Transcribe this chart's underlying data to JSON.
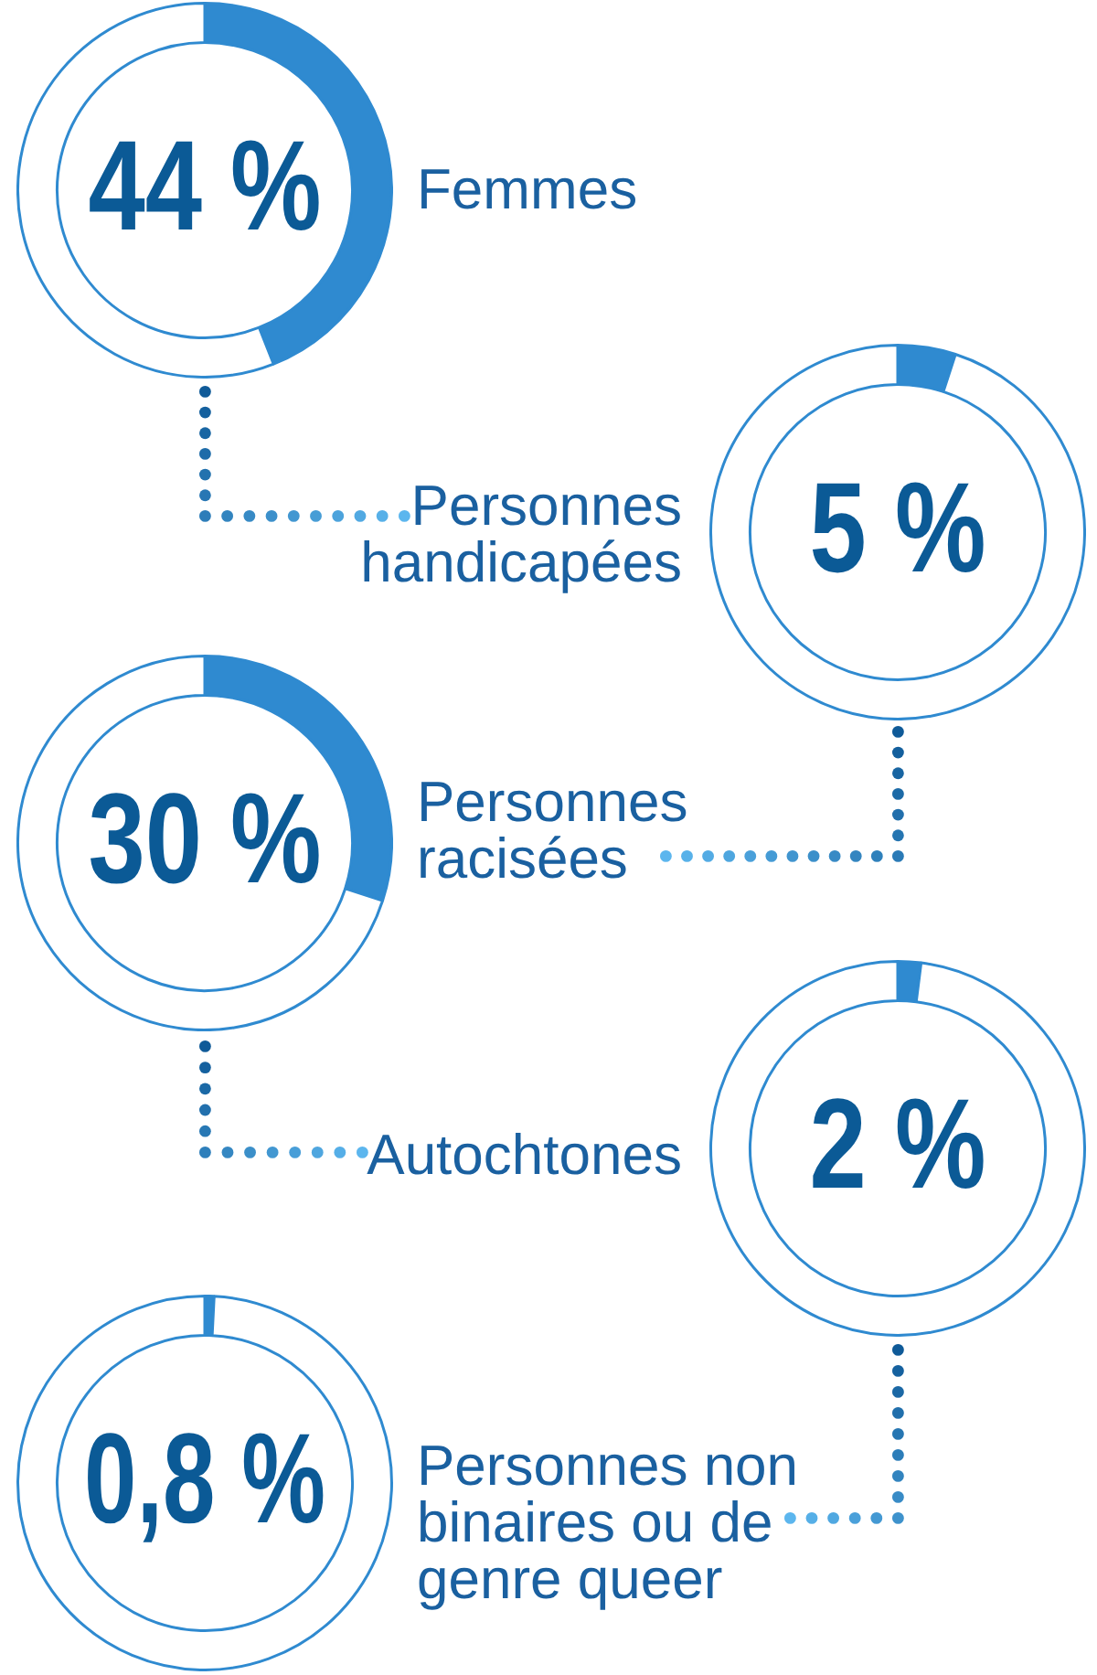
{
  "chart_data": [
    {
      "type": "donut",
      "title": "Femmes",
      "categories": [
        null,
        null
      ],
      "values": [
        44,
        56
      ],
      "colors": [
        "#2f8ad0",
        "#ffffff"
      ],
      "value_labels": [
        "44 %",
        null
      ]
    },
    {
      "type": "donut",
      "title": "Personnes handicapées",
      "categories": [
        null,
        null
      ],
      "values": [
        5,
        95
      ],
      "colors": [
        "#2f8ad0",
        "#ffffff"
      ],
      "value_labels": [
        "5 %",
        null
      ]
    },
    {
      "type": "donut",
      "title": "Personnes racisées",
      "categories": [
        null,
        null
      ],
      "values": [
        30,
        70
      ],
      "colors": [
        "#2f8ad0",
        "#ffffff"
      ],
      "value_labels": [
        "30 %",
        null
      ]
    },
    {
      "type": "donut",
      "title": "Autochtones",
      "categories": [
        null,
        null
      ],
      "values": [
        2,
        98
      ],
      "colors": [
        "#2f8ad0",
        "#ffffff"
      ],
      "value_labels": [
        "2 %",
        null
      ]
    },
    {
      "type": "donut",
      "title": "Personnes non binaires ou de genre queer",
      "categories": [
        null,
        null
      ],
      "values": [
        0.8,
        99.2
      ],
      "colors": [
        "#2f8ad0",
        "#ffffff"
      ],
      "value_labels": [
        "0,8 %",
        null
      ]
    }
  ]
}
